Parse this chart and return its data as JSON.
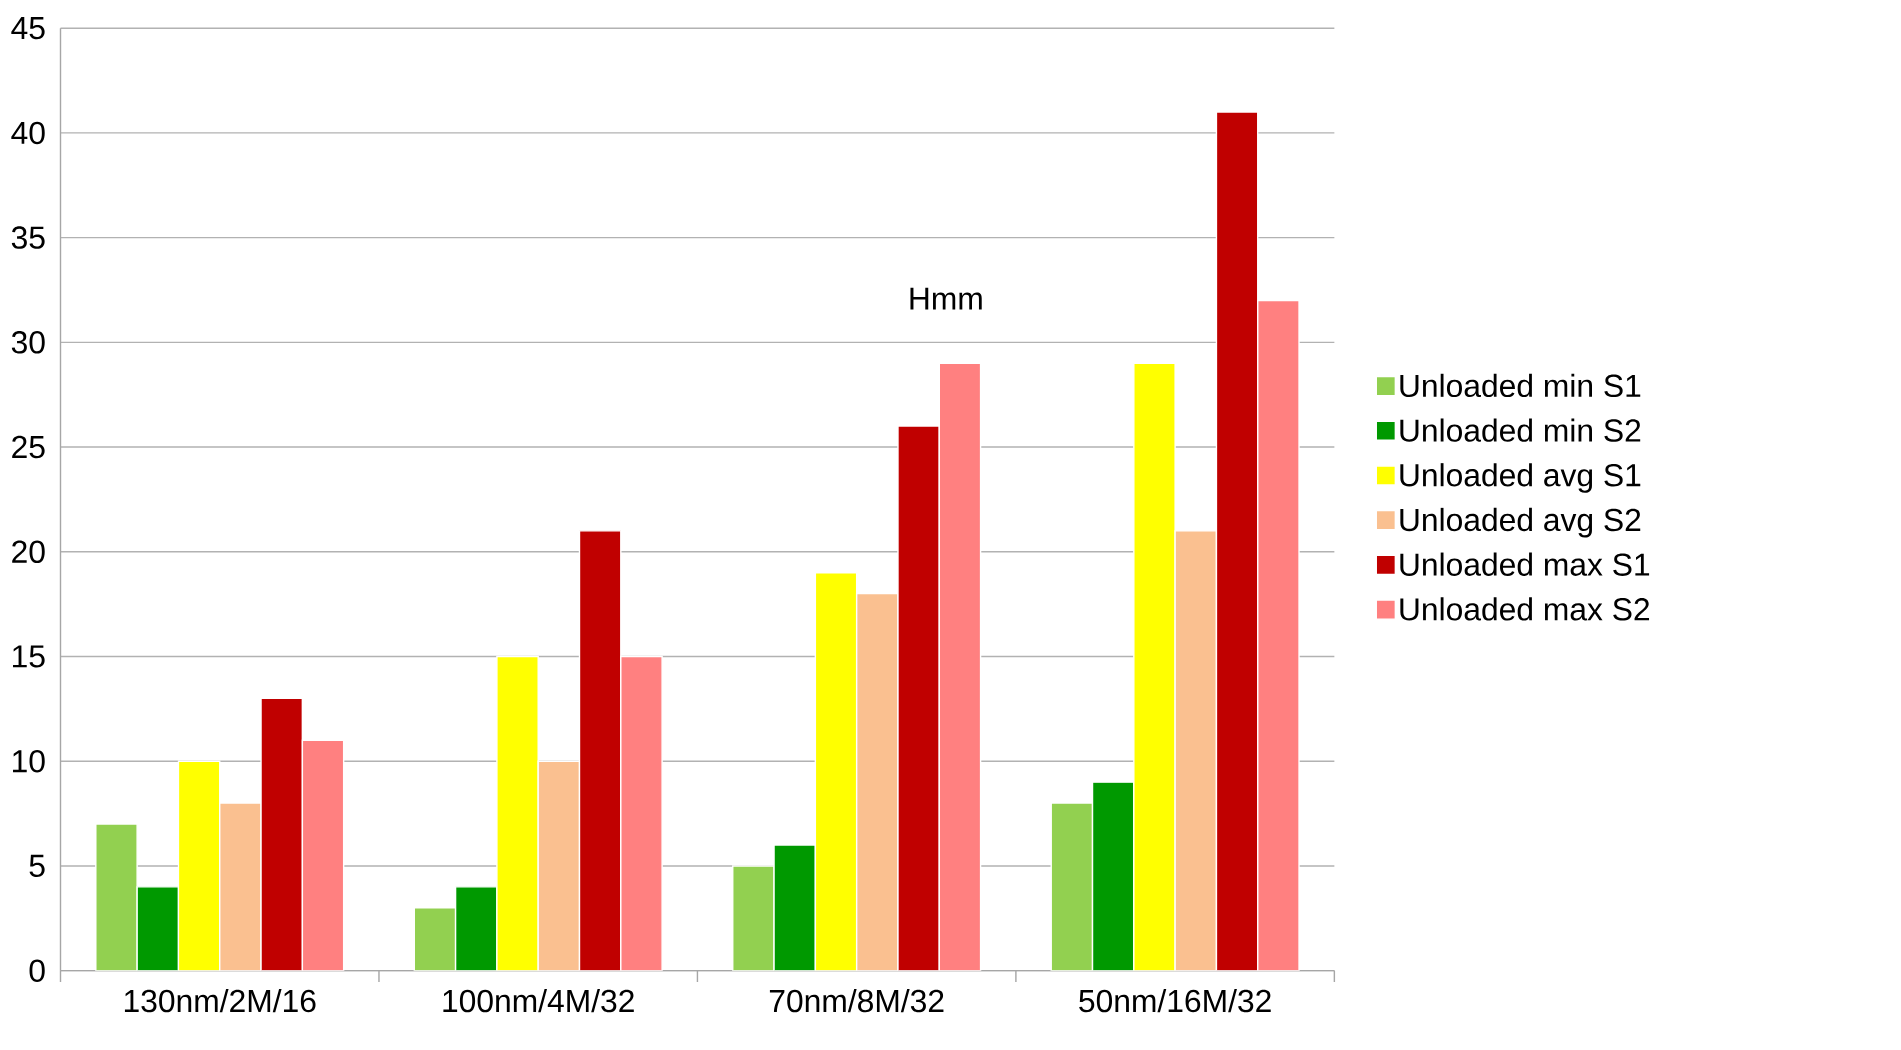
{
  "chart_data": {
    "type": "bar",
    "categories": [
      "130nm/2M/16",
      "100nm/4M/32",
      "70nm/8M/32",
      "50nm/16M/32"
    ],
    "series": [
      {
        "name": "Unloaded min S1",
        "color": "#92d050",
        "values": [
          7,
          3,
          5,
          8
        ]
      },
      {
        "name": "Unloaded min S2",
        "color": "#009900",
        "values": [
          4,
          4,
          6,
          9
        ]
      },
      {
        "name": "Unloaded avg S1",
        "color": "#ffff00",
        "values": [
          10,
          15,
          19,
          29
        ]
      },
      {
        "name": "Unloaded avg S2",
        "color": "#fac090",
        "values": [
          8,
          10,
          18,
          21
        ]
      },
      {
        "name": "Unloaded max S1",
        "color": "#c00000",
        "values": [
          13,
          21,
          26,
          41
        ]
      },
      {
        "name": "Unloaded max S2",
        "color": "#ff8080",
        "values": [
          11,
          15,
          29,
          32
        ]
      }
    ],
    "ylim": [
      0,
      45
    ],
    "yticks": [
      0,
      5,
      10,
      15,
      20,
      25,
      30,
      35,
      40,
      45
    ],
    "grid": "y",
    "legend": "right",
    "annotations": [
      "Hmm"
    ]
  }
}
